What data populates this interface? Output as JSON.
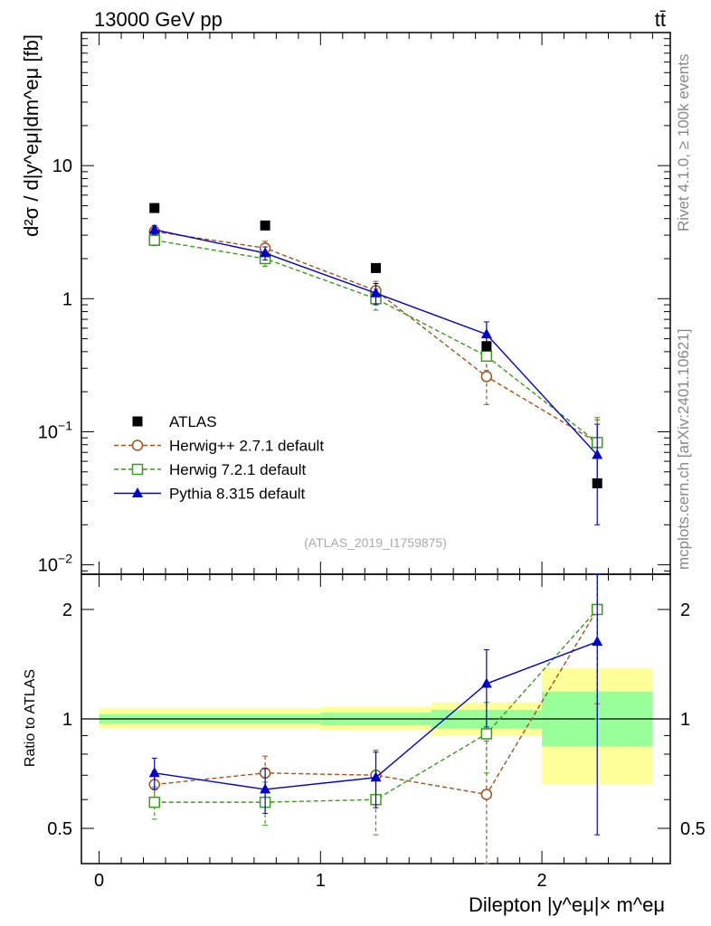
{
  "header": {
    "title": "13000 GeV pp",
    "process": "tt̄",
    "side_top": "Rivet 4.1.0, ≥ 100k events",
    "side_bottom": "mcplots.cern.ch [arXiv:2401.10621]",
    "analysis_tag": "(ATLAS_2019_I1759875)"
  },
  "colors": {
    "atlas": "#000000",
    "herwigpp": "#a0521a",
    "herwig7": "#3a9a1a",
    "pythia": "#0000cc",
    "band_inner": "#99ff99",
    "band_outer": "#ffff99"
  },
  "chart_data": [
    {
      "type": "scatter",
      "panel": "main",
      "scale": "log",
      "ylabel": "d²σ / d|y^eμ|dm^eμ [fb]",
      "ylim": [
        0.0085,
        100
      ],
      "xlim": [
        -0.08,
        2.58
      ],
      "yticks": [
        {
          "v": 0.01,
          "base": "10",
          "exp": "−2"
        },
        {
          "v": 0.1,
          "base": "10",
          "exp": "−1"
        },
        {
          "v": 1,
          "base": "1",
          "exp": ""
        },
        {
          "v": 10,
          "base": "10",
          "exp": ""
        }
      ],
      "legend_position": "middle-left",
      "series": [
        {
          "name": "ATLAS",
          "key": "atlas",
          "style": "marker",
          "x": [
            0.25,
            0.75,
            1.25,
            1.75,
            2.25
          ],
          "y": [
            4.8,
            3.55,
            1.7,
            0.44,
            0.041
          ],
          "err": [
            0,
            0,
            0,
            0,
            0
          ]
        },
        {
          "name": "Herwig++ 2.7.1 default",
          "key": "herwigpp",
          "style": "dashed-circle",
          "x": [
            0.25,
            0.75,
            1.25,
            1.75,
            2.25
          ],
          "y": [
            3.2,
            2.4,
            1.15,
            0.26,
            0.083
          ],
          "err": [
            0.25,
            0.3,
            0.2,
            0.1,
            0.04
          ]
        },
        {
          "name": "Herwig 7.2.1 default",
          "key": "herwig7",
          "style": "dashed-square",
          "x": [
            0.25,
            0.75,
            1.25,
            1.75,
            2.25
          ],
          "y": [
            2.75,
            2.0,
            1.0,
            0.37,
            0.083
          ],
          "err": [
            0.25,
            0.25,
            0.18,
            0.08,
            0.045
          ]
        },
        {
          "name": "Pythia 8.315 default",
          "key": "pythia",
          "style": "solid-triangle",
          "x": [
            0.25,
            0.75,
            1.25,
            1.75,
            2.25
          ],
          "y": [
            3.3,
            2.2,
            1.1,
            0.54,
            0.067
          ],
          "err": [
            0.25,
            0.25,
            0.2,
            0.13,
            0.047
          ]
        }
      ]
    },
    {
      "type": "scatter",
      "panel": "ratio",
      "scale": "log",
      "ylabel": "Ratio to ATLAS",
      "xlabel": "Dilepton |y^eμ|× m^eμ",
      "ylim": [
        0.4,
        2.5
      ],
      "xlim": [
        -0.08,
        2.58
      ],
      "yticks": [
        0.5,
        1,
        2
      ],
      "xticks": [
        0,
        1,
        2
      ],
      "bins": [
        [
          0,
          1
        ],
        [
          1,
          1.5
        ],
        [
          1.5,
          2
        ],
        [
          2,
          2.5
        ]
      ],
      "band_outer": [
        [
          0.94,
          1.07
        ],
        [
          0.93,
          1.08
        ],
        [
          0.9,
          1.11
        ],
        [
          0.66,
          1.38
        ]
      ],
      "band_inner": [
        [
          0.97,
          1.03
        ],
        [
          0.96,
          1.04
        ],
        [
          0.94,
          1.06
        ],
        [
          0.84,
          1.19
        ]
      ],
      "series": [
        {
          "name": "Herwig++ 2.7.1 default",
          "key": "herwigpp",
          "x": [
            0.25,
            0.75,
            1.25,
            1.75,
            2.25
          ],
          "y": [
            0.66,
            0.71,
            0.7,
            0.62,
            2.0
          ],
          "err": [
            0.06,
            0.08,
            0.12,
            0.25,
            0.9
          ]
        },
        {
          "name": "Herwig 7.2.1 default",
          "key": "herwig7",
          "x": [
            0.25,
            0.75,
            1.25,
            1.75,
            2.25
          ],
          "y": [
            0.59,
            0.59,
            0.6,
            0.91,
            2.0
          ],
          "err": [
            0.06,
            0.08,
            0.12,
            0.2,
            1.0
          ]
        },
        {
          "name": "Pythia 8.315 default",
          "key": "pythia",
          "x": [
            0.25,
            0.75,
            1.25,
            1.75,
            2.25
          ],
          "y": [
            0.71,
            0.64,
            0.69,
            1.25,
            1.63
          ],
          "err": [
            0.07,
            0.09,
            0.12,
            0.3,
            1.15
          ]
        }
      ]
    }
  ]
}
